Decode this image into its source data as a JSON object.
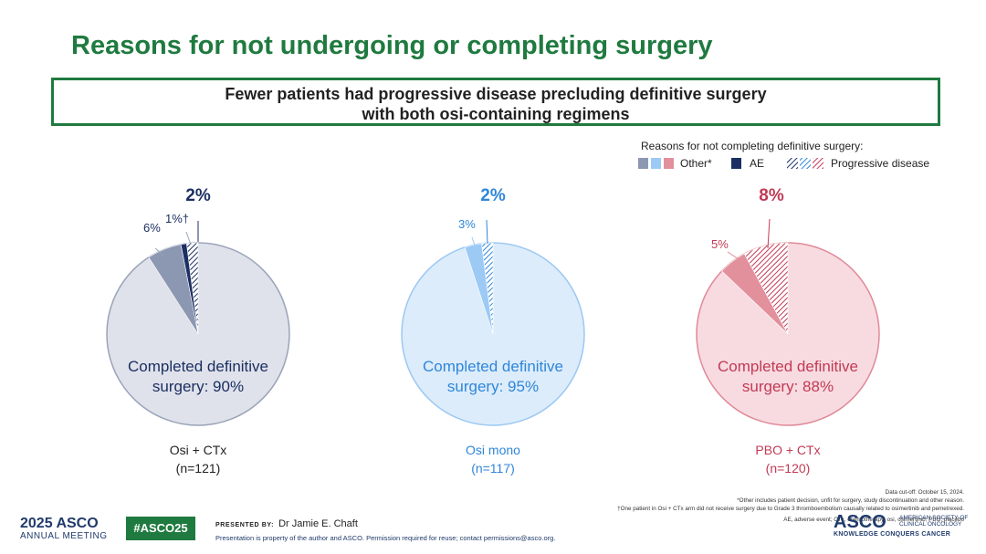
{
  "slide": {
    "title": "Reasons for not undergoing or completing surgery",
    "callout_line1": "Fewer patients had progressive disease precluding definitive surgery",
    "callout_line2": "with both osi-containing regimens"
  },
  "legend": {
    "title": "Reasons for not completing definitive surgery:",
    "other_label": "Other*",
    "ae_label": "AE",
    "pd_label": "Progressive disease"
  },
  "chart_data": [
    {
      "type": "pie",
      "arm": "Osi + CTx",
      "n": "(n=121)",
      "slices": [
        {
          "name": "Completed definitive surgery",
          "value": 90,
          "label": "Completed definitive surgery: 90%"
        },
        {
          "name": "Other*",
          "value": 6,
          "label": "6%"
        },
        {
          "name": "AE",
          "value": 1,
          "label": "1%†"
        },
        {
          "name": "Progressive disease",
          "value": 2,
          "label": "2%"
        }
      ],
      "colors": {
        "main": "#dfe2ea",
        "border": "#9aa3b8",
        "other": "#8c97b2",
        "ae": "#1c2f63",
        "pd": "#1c2f63",
        "text": "#1c2f63"
      }
    },
    {
      "type": "pie",
      "arm": "Osi mono",
      "n": "(n=117)",
      "slices": [
        {
          "name": "Completed definitive surgery",
          "value": 95,
          "label": "Completed definitive surgery: 95%"
        },
        {
          "name": "Other*",
          "value": 3,
          "label": "3%"
        },
        {
          "name": "Progressive disease",
          "value": 2,
          "label": "2%"
        }
      ],
      "colors": {
        "main": "#dcecfb",
        "border": "#9cc8f2",
        "other": "#9ccaf5",
        "ae": "#1c2f63",
        "pd": "#2f86d9",
        "text": "#2f86d9"
      }
    },
    {
      "type": "pie",
      "arm": "PBO + CTx",
      "n": "(n=120)",
      "slices": [
        {
          "name": "Completed definitive surgery",
          "value": 88,
          "label": "Completed definitive surgery: 88%"
        },
        {
          "name": "Other*",
          "value": 5,
          "label": "5%"
        },
        {
          "name": "Progressive disease",
          "value": 8,
          "label": "8%"
        }
      ],
      "colors": {
        "main": "#f7dbe0",
        "border": "#e08a98",
        "other": "#e2909c",
        "ae": "#1c2f63",
        "pd": "#c23a55",
        "text": "#c23a55"
      }
    }
  ],
  "center_text": [
    "Completed definitive",
    "surgery: 90%",
    "Completed definitive",
    "surgery: 95%",
    "Completed definitive",
    "surgery: 88%"
  ],
  "footer": {
    "asco_year": "2025",
    "asco_name": "ASCO",
    "asco_meeting": "ANNUAL MEETING",
    "hashtag": "#ASCO25",
    "presented_by": "PRESENTED BY:",
    "presenter": "Dr Jamie E. Chaft",
    "property_note": "Presentation is property of the author and ASCO. Permission required for reuse; contact permissions@asco.org.",
    "cutoff": "Data cut-off: October 15, 2024.",
    "other_note": "*Other includes patient decision, unfit for surgery, study discontinuation and other reason.",
    "dagger_note": "†One patient in Osi + CTx arm did not receive surgery due to Grade 3 thromboembolism causally related to osimertinib and pemetrexed.",
    "abbrev": "AE, adverse event; CTx, chemotherapy; osi, osimertinib; PBO, placebo",
    "asco_right": "ASCO",
    "asco_society1": "AMERICAN SOCIETY OF",
    "asco_society2": "CLINICAL ONCOLOGY",
    "asco_tagline": "KNOWLEDGE CONQUERS CANCER"
  }
}
